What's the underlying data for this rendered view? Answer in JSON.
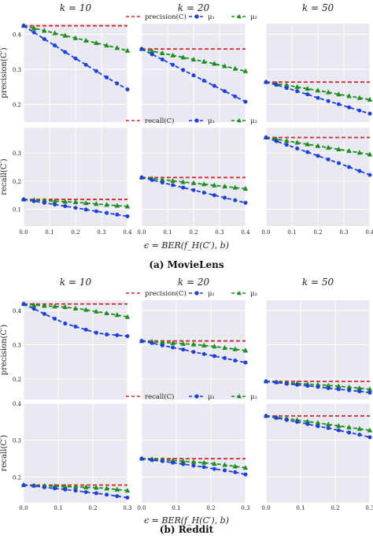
{
  "figure": {
    "legend_labels": {
      "baseline_precision": "precision(C)",
      "baseline_recall": "recall(C)",
      "mu1": "μ₁",
      "mu2": "μ₂"
    },
    "series_colors": {
      "baseline": "#d62728",
      "mu1": "#1f3fd6",
      "mu2": "#1e8c1e"
    },
    "plot_background": "#e9e9f1",
    "grid_color": "#ffffff"
  },
  "chart_data": [
    {
      "type": "line",
      "panel_title": "(a) MovieLens",
      "xlabel": "ϵ = BER(f_H(C′), b)",
      "x": [
        0.0,
        0.04,
        0.08,
        0.12,
        0.16,
        0.2,
        0.24,
        0.28,
        0.32,
        0.36,
        0.4
      ],
      "xlim": [
        0,
        0.4
      ],
      "xticks": [
        "0.0",
        "0.1",
        "0.2",
        "0.3",
        "0.4"
      ],
      "columns": [
        "k = 10",
        "k = 20",
        "k = 50"
      ],
      "rows": [
        {
          "ylabel": "precision(C′)",
          "ylim": [
            0.15,
            0.43
          ],
          "yticks": [
            "0.2",
            "0.3",
            "0.4"
          ],
          "legend": [
            "precision(C)",
            "μ₁",
            "μ₂"
          ],
          "subplots": [
            {
              "baseline": 0.424,
              "mu1": [
                0.424,
                0.405,
                0.386,
                0.368,
                0.349,
                0.331,
                0.313,
                0.295,
                0.277,
                0.26,
                0.243
              ],
              "mu2": [
                0.424,
                0.417,
                0.41,
                0.403,
                0.396,
                0.389,
                0.382,
                0.375,
                0.368,
                0.361,
                0.353
              ]
            },
            {
              "baseline": 0.358,
              "mu1": [
                0.358,
                0.343,
                0.328,
                0.313,
                0.298,
                0.283,
                0.268,
                0.253,
                0.238,
                0.223,
                0.208
              ],
              "mu2": [
                0.358,
                0.352,
                0.346,
                0.34,
                0.334,
                0.328,
                0.322,
                0.316,
                0.309,
                0.302,
                0.295
              ]
            },
            {
              "baseline": 0.264,
              "mu1": [
                0.264,
                0.256,
                0.247,
                0.238,
                0.229,
                0.219,
                0.21,
                0.201,
                0.192,
                0.183,
                0.174
              ],
              "mu2": [
                0.264,
                0.259,
                0.255,
                0.25,
                0.245,
                0.24,
                0.235,
                0.229,
                0.224,
                0.219,
                0.214
              ]
            }
          ]
        },
        {
          "ylabel": "recall(C′)",
          "ylim": [
            0.04,
            0.39
          ],
          "yticks": [
            "0.1",
            "0.2",
            "0.3"
          ],
          "legend": [
            "recall(C)",
            "μ₁",
            "μ₂"
          ],
          "subplots": [
            {
              "baseline": 0.135,
              "mu1": [
                0.135,
                0.129,
                0.123,
                0.117,
                0.111,
                0.105,
                0.099,
                0.093,
                0.087,
                0.081,
                0.075
              ],
              "mu2": [
                0.135,
                0.133,
                0.131,
                0.129,
                0.127,
                0.125,
                0.122,
                0.119,
                0.116,
                0.113,
                0.11
              ]
            },
            {
              "baseline": 0.213,
              "mu1": [
                0.213,
                0.204,
                0.195,
                0.186,
                0.177,
                0.168,
                0.159,
                0.15,
                0.141,
                0.132,
                0.123
              ],
              "mu2": [
                0.213,
                0.209,
                0.205,
                0.201,
                0.197,
                0.193,
                0.189,
                0.185,
                0.181,
                0.177,
                0.173
              ]
            },
            {
              "baseline": 0.355,
              "mu1": [
                0.355,
                0.342,
                0.329,
                0.316,
                0.303,
                0.29,
                0.277,
                0.264,
                0.25,
                0.236,
                0.222
              ],
              "mu2": [
                0.355,
                0.349,
                0.343,
                0.337,
                0.331,
                0.325,
                0.319,
                0.313,
                0.307,
                0.301,
                0.295
              ]
            }
          ]
        }
      ]
    },
    {
      "type": "line",
      "panel_title": "(b) Reddit",
      "xlabel": "ϵ = BER(f_H(C′), b)",
      "x": [
        0.0,
        0.03,
        0.06,
        0.09,
        0.12,
        0.15,
        0.18,
        0.21,
        0.24,
        0.27,
        0.3
      ],
      "xlim": [
        0,
        0.3
      ],
      "xticks": [
        "0.0",
        "0.1",
        "0.2",
        "0.3"
      ],
      "columns": [
        "k = 10",
        "k = 20",
        "k = 50"
      ],
      "rows": [
        {
          "ylabel": "precision(C′)",
          "ylim": [
            0.14,
            0.43
          ],
          "yticks": [
            "0.2",
            "0.3",
            "0.4"
          ],
          "legend": [
            "precision(C)",
            "μ₁",
            "μ₂"
          ],
          "subplots": [
            {
              "baseline": 0.419,
              "mu1": [
                0.419,
                0.405,
                0.39,
                0.376,
                0.362,
                0.353,
                0.344,
                0.335,
                0.33,
                0.328,
                0.325
              ],
              "mu2": [
                0.419,
                0.416,
                0.414,
                0.412,
                0.41,
                0.406,
                0.402,
                0.397,
                0.392,
                0.387,
                0.381
              ]
            },
            {
              "baseline": 0.311,
              "mu1": [
                0.311,
                0.305,
                0.298,
                0.292,
                0.286,
                0.279,
                0.273,
                0.267,
                0.261,
                0.254,
                0.248
              ],
              "mu2": [
                0.311,
                0.309,
                0.307,
                0.305,
                0.303,
                0.301,
                0.298,
                0.295,
                0.291,
                0.287,
                0.283
              ]
            },
            {
              "baseline": 0.193,
              "mu1": [
                0.193,
                0.19,
                0.186,
                0.183,
                0.18,
                0.177,
                0.173,
                0.17,
                0.167,
                0.164,
                0.16
              ],
              "mu2": [
                0.193,
                0.191,
                0.189,
                0.187,
                0.185,
                0.183,
                0.181,
                0.179,
                0.176,
                0.173,
                0.17
              ]
            }
          ]
        },
        {
          "ylabel": "recall(C′)",
          "ylim": [
            0.13,
            0.4
          ],
          "yticks": [
            "0.2",
            "0.3",
            "0.4"
          ],
          "legend": [
            "recall(C)",
            "μ₁",
            "μ₂"
          ],
          "subplots": [
            {
              "baseline": 0.178,
              "mu1": [
                0.178,
                0.176,
                0.172,
                0.169,
                0.166,
                0.163,
                0.159,
                0.156,
                0.152,
                0.148,
                0.144
              ],
              "mu2": [
                0.178,
                0.177,
                0.176,
                0.175,
                0.174,
                0.173,
                0.172,
                0.171,
                0.169,
                0.166,
                0.163
              ]
            },
            {
              "baseline": 0.25,
              "mu1": [
                0.25,
                0.246,
                0.243,
                0.239,
                0.235,
                0.231,
                0.227,
                0.222,
                0.218,
                0.213,
                0.207
              ],
              "mu2": [
                0.25,
                0.249,
                0.247,
                0.245,
                0.243,
                0.241,
                0.239,
                0.236,
                0.233,
                0.229,
                0.225
              ]
            },
            {
              "baseline": 0.366,
              "mu1": [
                0.366,
                0.361,
                0.355,
                0.35,
                0.344,
                0.338,
                0.333,
                0.327,
                0.321,
                0.315,
                0.308
              ],
              "mu2": [
                0.366,
                0.362,
                0.359,
                0.355,
                0.351,
                0.347,
                0.343,
                0.339,
                0.335,
                0.331,
                0.327
              ]
            }
          ]
        }
      ]
    }
  ]
}
